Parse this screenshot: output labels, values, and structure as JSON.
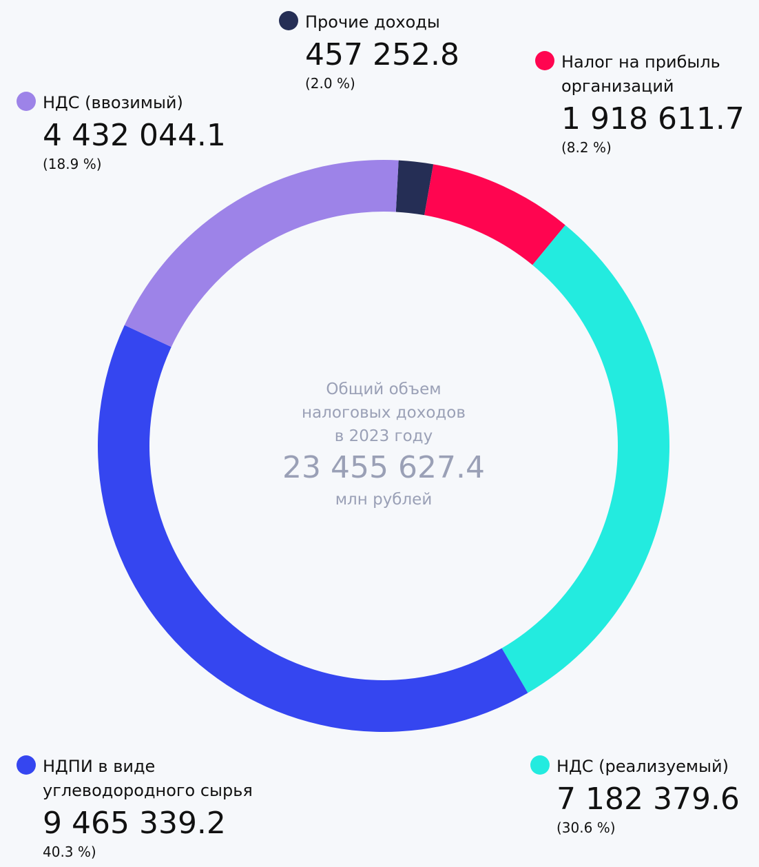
{
  "chart_data": {
    "type": "donut",
    "categories": [
      "Прочие доходы",
      "Налог на прибыль организаций",
      "НДС (реализуемый)",
      "НДПИ в виде углеводородного сырья",
      "НДС (ввозимый)"
    ],
    "values": [
      457252.8,
      1918611.7,
      7182379.6,
      9465339.2,
      4432044.1
    ],
    "value_labels": [
      "457 252.8",
      "1 918 611.7",
      "7 182 379.6",
      "9 465 339.2",
      "4 432 044.1"
    ],
    "percentages": [
      2.0,
      8.2,
      30.6,
      40.3,
      18.9
    ],
    "percent_labels": [
      "(2.0 %)",
      "(8.2 %)",
      "(30.6 %)",
      "40.3 %)",
      "(18.9 %)"
    ],
    "colors": [
      "#252e55",
      "#ff0550",
      "#23ebdf",
      "#3546f0",
      "#9d83e8"
    ],
    "center_title": [
      "Общий объем",
      "налоговых доходов",
      "в 2023 году"
    ],
    "total": 23455627.4,
    "total_label": "23 455 627.4",
    "unit": "млн рублей"
  }
}
